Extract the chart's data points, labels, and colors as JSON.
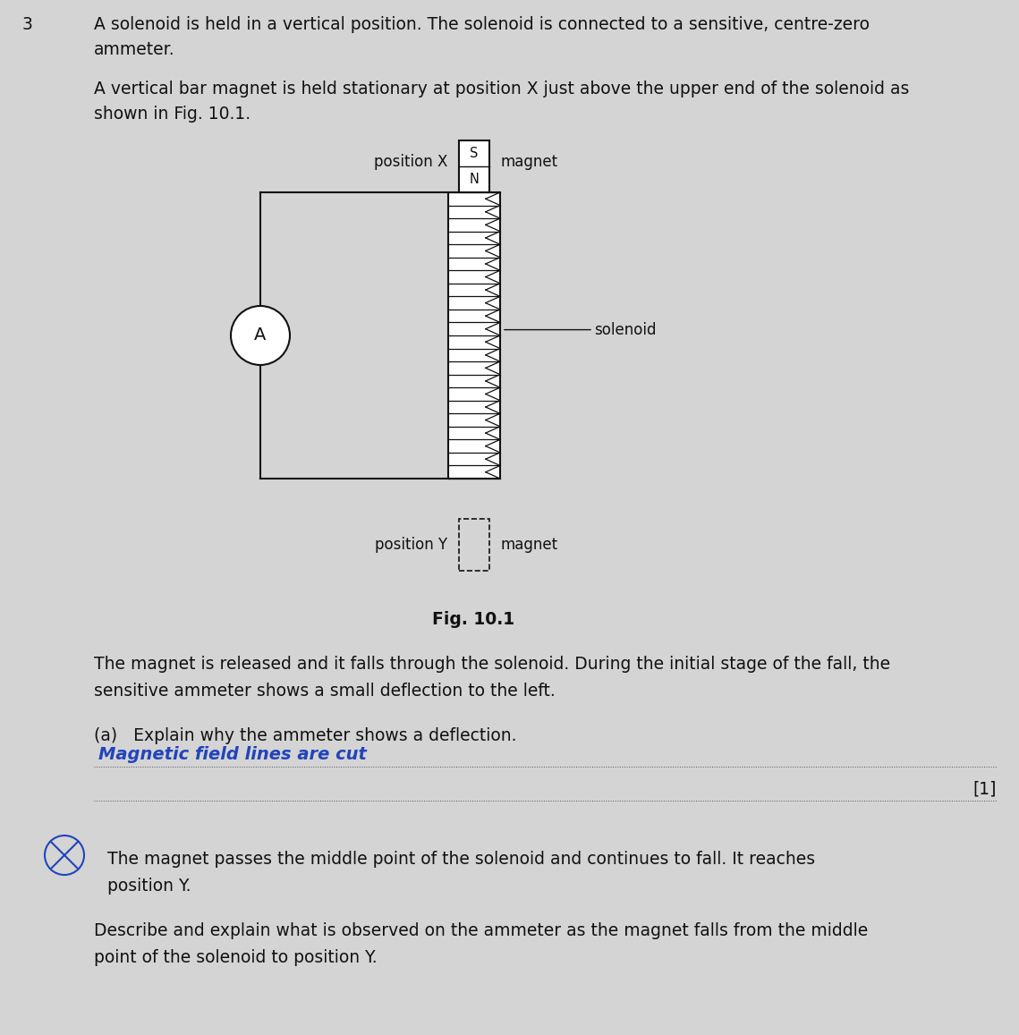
{
  "bg_color": "#d4d4d4",
  "text_color": "#111111",
  "fig_width": 11.39,
  "fig_height": 11.57,
  "dpi": 100,
  "question_number": "3",
  "para1_line1": "A solenoid is held in a vertical position. The solenoid is connected to a sensitive, centre-zero",
  "para1_line2": "ammeter.",
  "para2_line1": "A vertical bar magnet is held stationary at position X just above the upper end of the solenoid as",
  "para2_line2": "shown in Fig. 10.1.",
  "fig_caption": "Fig. 10.1",
  "para3_line1": "The magnet is released and it falls through the solenoid. During the initial stage of the fall, the",
  "para3_line2": "sensitive ammeter shows a small deflection to the left.",
  "part_a_label": "(a)   Explain why the ammeter shows a deflection.",
  "part_a_answer": "Magnetic field lines are cut",
  "mark_1": "[1]",
  "part_b_text1_line1": "The magnet passes the middle point of the solenoid and continues to fall. It reaches",
  "part_b_text1_line2": "position Y.",
  "part_b_text2_line1": "Describe and explain what is observed on the ammeter as the magnet falls from the middle",
  "part_b_text2_line2": "point of the solenoid to position Y.",
  "solenoid_label": "solenoid",
  "position_x_label": "position X",
  "magnet_top_label": "magnet",
  "position_y_label": "position Y",
  "magnet_bottom_label": "magnet",
  "ammeter_label": "A",
  "s_label": "S",
  "n_label": "N",
  "font_size_main": 13.5,
  "font_size_diagram": 12.0,
  "font_size_small": 10.5,
  "answer_color": "#2244bb",
  "dot_line_color": "#555555"
}
